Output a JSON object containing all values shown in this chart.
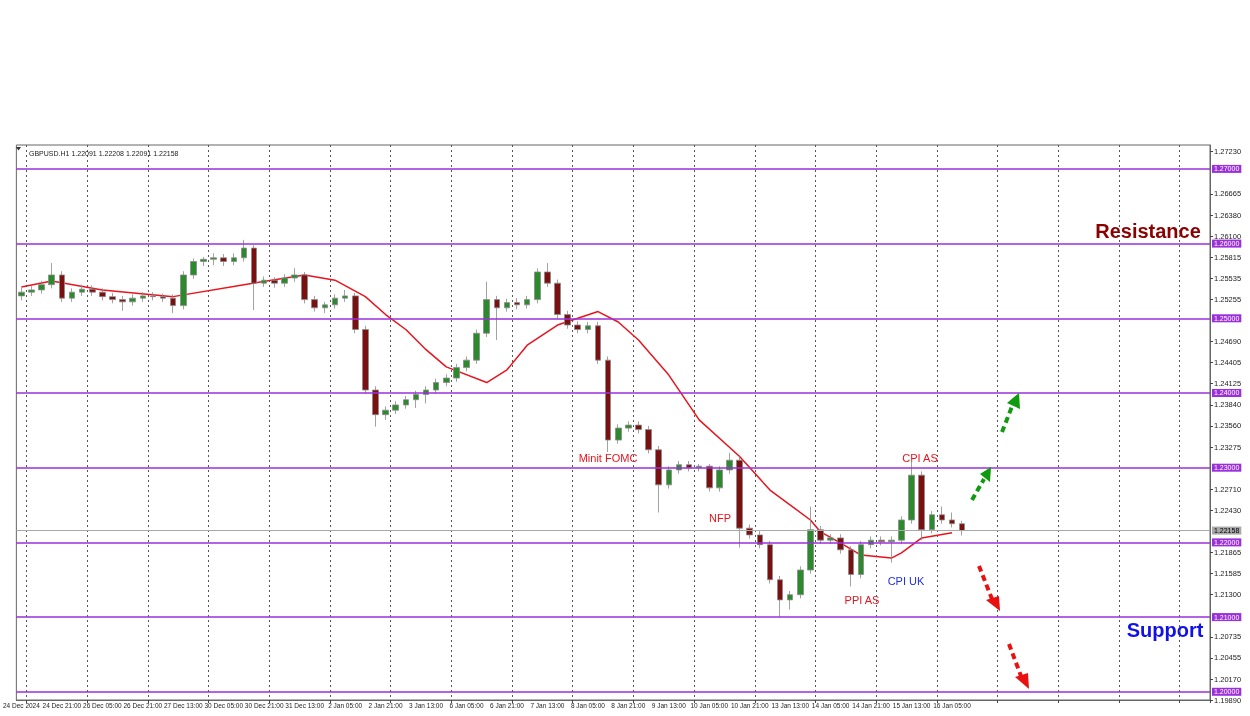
{
  "chart_data": {
    "type": "candlestick",
    "title": "GBPUSD.H1 1.22091 1.22208 1.22091 1.22158",
    "categories": [
      "24 Dec 2024",
      null,
      null,
      null,
      "24 Dec 21:00",
      null,
      null,
      null,
      "26 Dec 05:00",
      null,
      null,
      null,
      "26 Dec 21:00",
      null,
      null,
      null,
      "27 Dec 13:00",
      null,
      null,
      null,
      "30 Dec 05:00",
      null,
      null,
      null,
      "30 Dec 21:00",
      null,
      null,
      null,
      "31 Dec 13:00",
      null,
      null,
      null,
      "2 Jan 05:00",
      null,
      null,
      null,
      "2 Jan 21:00",
      null,
      null,
      null,
      "3 Jan 13:00",
      null,
      null,
      null,
      "6 Jan 05:00",
      null,
      null,
      null,
      "6 Jan 21:00",
      null,
      null,
      null,
      "7 Jan 13:00",
      null,
      null,
      null,
      "8 Jan 05:00",
      null,
      null,
      null,
      "8 Jan 21:00",
      null,
      null,
      null,
      "9 Jan 13:00",
      null,
      null,
      null,
      "10 Jan 05:00",
      null,
      null,
      null,
      "10 Jan 21:00",
      null,
      null,
      null,
      "13 Jan 13:00",
      null,
      null,
      null,
      "14 Jan 05:00",
      null,
      null,
      null,
      "14 Jan 21:00",
      null,
      null,
      null,
      "15 Jan 13:00",
      null,
      null,
      null,
      "16 Jan 05:00",
      null,
      null,
      null,
      null,
      null,
      null,
      null,
      null,
      null,
      null,
      null,
      null,
      null,
      null,
      null,
      null,
      null,
      null,
      null,
      null,
      null,
      null,
      null,
      null,
      null
    ],
    "ohlc": [
      [
        1.253,
        1.2541,
        1.2524,
        1.2535
      ],
      [
        1.2535,
        1.2543,
        1.253,
        1.2538
      ],
      [
        1.2538,
        1.255,
        1.2533,
        1.2545
      ],
      [
        1.2545,
        1.2574,
        1.254,
        1.2558
      ],
      [
        1.2558,
        1.2563,
        1.2522,
        1.2527
      ],
      [
        1.2527,
        1.254,
        1.2522,
        1.2535
      ],
      [
        1.2535,
        1.2545,
        1.253,
        1.2539
      ],
      [
        1.2539,
        1.2544,
        1.253,
        1.2535
      ],
      [
        1.2535,
        1.254,
        1.2524,
        1.2529
      ],
      [
        1.2529,
        1.2534,
        1.252,
        1.2525
      ],
      [
        1.2525,
        1.253,
        1.251,
        1.2522
      ],
      [
        1.2522,
        1.2532,
        1.2517,
        1.2527
      ],
      [
        1.2527,
        1.2535,
        1.2522,
        1.253
      ],
      [
        1.253,
        1.2535,
        1.2524,
        1.2529
      ],
      [
        1.2529,
        1.2533,
        1.2522,
        1.2527
      ],
      [
        1.2527,
        1.2532,
        1.2507,
        1.2517
      ],
      [
        1.2517,
        1.2563,
        1.2512,
        1.2558
      ],
      [
        1.2558,
        1.258,
        1.2553,
        1.2576
      ],
      [
        1.2576,
        1.2582,
        1.257,
        1.2579
      ],
      [
        1.2579,
        1.2587,
        1.2571,
        1.2581
      ],
      [
        1.2581,
        1.2586,
        1.257,
        1.2576
      ],
      [
        1.2576,
        1.2587,
        1.2571,
        1.2581
      ],
      [
        1.2581,
        1.2605,
        1.2576,
        1.2594
      ],
      [
        1.2594,
        1.2598,
        1.2511,
        1.2547
      ],
      [
        1.2547,
        1.2556,
        1.2542,
        1.2551
      ],
      [
        1.2551,
        1.2555,
        1.2541,
        1.2547
      ],
      [
        1.2547,
        1.2559,
        1.2542,
        1.2554
      ],
      [
        1.2554,
        1.2567,
        1.2549,
        1.2558
      ],
      [
        1.2558,
        1.2562,
        1.252,
        1.2525
      ],
      [
        1.2525,
        1.253,
        1.2509,
        1.2514
      ],
      [
        1.2514,
        1.2522,
        1.2507,
        1.2518
      ],
      [
        1.2518,
        1.2532,
        1.2513,
        1.2527
      ],
      [
        1.2527,
        1.2538,
        1.2522,
        1.253
      ],
      [
        1.253,
        1.2534,
        1.248,
        1.2485
      ],
      [
        1.2485,
        1.249,
        1.2399,
        1.2404
      ],
      [
        1.2404,
        1.2409,
        1.2355,
        1.2371
      ],
      [
        1.2371,
        1.2382,
        1.2364,
        1.2377
      ],
      [
        1.2377,
        1.2389,
        1.2372,
        1.2384
      ],
      [
        1.2384,
        1.2396,
        1.2379,
        1.2391
      ],
      [
        1.2391,
        1.2403,
        1.238,
        1.2398
      ],
      [
        1.2398,
        1.2409,
        1.2386,
        1.2404
      ],
      [
        1.2404,
        1.2419,
        1.2399,
        1.2414
      ],
      [
        1.2414,
        1.2425,
        1.2409,
        1.242
      ],
      [
        1.242,
        1.2439,
        1.2415,
        1.2434
      ],
      [
        1.2434,
        1.2449,
        1.2429,
        1.2444
      ],
      [
        1.2444,
        1.2485,
        1.2439,
        1.248
      ],
      [
        1.248,
        1.2549,
        1.2475,
        1.2525
      ],
      [
        1.2525,
        1.253,
        1.2471,
        1.2514
      ],
      [
        1.2514,
        1.2526,
        1.2509,
        1.2521
      ],
      [
        1.2521,
        1.2527,
        1.2512,
        1.2518
      ],
      [
        1.2518,
        1.253,
        1.2513,
        1.2525
      ],
      [
        1.2525,
        1.2567,
        1.252,
        1.2562
      ],
      [
        1.2562,
        1.2574,
        1.2542,
        1.2547
      ],
      [
        1.2547,
        1.2552,
        1.25,
        1.2505
      ],
      [
        1.2505,
        1.251,
        1.2486,
        1.2491
      ],
      [
        1.2491,
        1.2496,
        1.248,
        1.2485
      ],
      [
        1.2485,
        1.2495,
        1.248,
        1.249
      ],
      [
        1.249,
        1.2495,
        1.2439,
        1.2444
      ],
      [
        1.2444,
        1.2449,
        1.2321,
        1.2337
      ],
      [
        1.2337,
        1.2358,
        1.2332,
        1.2353
      ],
      [
        1.2353,
        1.2362,
        1.2348,
        1.2357
      ],
      [
        1.2357,
        1.2362,
        1.2346,
        1.2351
      ],
      [
        1.2351,
        1.2356,
        1.2319,
        1.2324
      ],
      [
        1.2324,
        1.2329,
        1.224,
        1.2277
      ],
      [
        1.2277,
        1.2302,
        1.2272,
        1.2297
      ],
      [
        1.2297,
        1.2309,
        1.2292,
        1.2304
      ],
      [
        1.2304,
        1.2309,
        1.2295,
        1.23
      ],
      [
        1.23,
        1.2305,
        1.2295,
        1.2302
      ],
      [
        1.2302,
        1.2305,
        1.2268,
        1.2273
      ],
      [
        1.2273,
        1.2302,
        1.2268,
        1.2297
      ],
      [
        1.2297,
        1.232,
        1.2292,
        1.231
      ],
      [
        1.231,
        1.2315,
        1.2193,
        1.2219
      ],
      [
        1.2219,
        1.2224,
        1.2205,
        1.221
      ],
      [
        1.221,
        1.2215,
        1.2192,
        1.2197
      ],
      [
        1.2197,
        1.2202,
        1.2145,
        1.215
      ],
      [
        1.215,
        1.2155,
        1.21,
        1.2123
      ],
      [
        1.2123,
        1.2135,
        1.211,
        1.213
      ],
      [
        1.213,
        1.2168,
        1.2125,
        1.2163
      ],
      [
        1.2163,
        1.2248,
        1.2158,
        1.2217
      ],
      [
        1.2217,
        1.2222,
        1.2198,
        1.2203
      ],
      [
        1.2203,
        1.2211,
        1.2198,
        1.2206
      ],
      [
        1.2206,
        1.2211,
        1.2185,
        1.219
      ],
      [
        1.219,
        1.2195,
        1.2141,
        1.2157
      ],
      [
        1.2157,
        1.2202,
        1.2152,
        1.2197
      ],
      [
        1.2197,
        1.2208,
        1.2192,
        1.2203
      ],
      [
        1.2203,
        1.2208,
        1.2196,
        1.2201
      ],
      [
        1.2201,
        1.2208,
        1.2173,
        1.2203
      ],
      [
        1.2203,
        1.2235,
        1.2198,
        1.223
      ],
      [
        1.223,
        1.2311,
        1.2225,
        1.229
      ],
      [
        1.229,
        1.2295,
        1.2203,
        1.2217
      ],
      [
        1.2217,
        1.2242,
        1.2212,
        1.2237
      ],
      [
        1.2237,
        1.2248,
        1.2225,
        1.223
      ],
      [
        1.223,
        1.224,
        1.222,
        1.2225
      ],
      [
        1.2225,
        1.2229,
        1.22091,
        1.22158
      ],
      null,
      null,
      null,
      null,
      null,
      null,
      null,
      null,
      null,
      null,
      null,
      null,
      null,
      null,
      null,
      null,
      null,
      null,
      null,
      null,
      null,
      null,
      null,
      null
    ],
    "series": [
      {
        "type": "line",
        "color": "#e8141e",
        "values": [
          1.2542,
          null,
          null,
          1.255,
          null,
          null,
          null,
          null,
          1.2538,
          null,
          null,
          null,
          null,
          null,
          null,
          1.2529,
          null,
          null,
          null,
          null,
          null,
          null,
          1.2545,
          null,
          null,
          null,
          null,
          null,
          1.2558,
          null,
          null,
          1.2551,
          null,
          null,
          1.2529,
          null,
          1.2505,
          null,
          1.2485,
          null,
          1.2458,
          null,
          1.2435,
          null,
          null,
          null,
          1.2414,
          null,
          1.2431,
          null,
          1.2464,
          null,
          null,
          1.2491,
          null,
          null,
          null,
          1.2509,
          null,
          1.2495,
          null,
          1.2471,
          null,
          null,
          1.2424,
          null,
          null,
          1.2364,
          null,
          null,
          null,
          1.2315,
          null,
          null,
          1.227,
          null,
          null,
          null,
          1.223,
          1.2214,
          null,
          1.2199,
          null,
          1.2183,
          null,
          null,
          1.2179,
          1.2186,
          null,
          1.2206,
          null,
          null,
          1.2213,
          null,
          null,
          null,
          null,
          null,
          null,
          null,
          null,
          null,
          null,
          null,
          null,
          null,
          null,
          null,
          null,
          null,
          null,
          null,
          null,
          null,
          null,
          null,
          null,
          null
        ]
      }
    ],
    "ylim": [
      1.1989,
      1.2732
    ],
    "yticks": [
      {
        "value": 1.2723,
        "label": "1.27230"
      },
      {
        "value": 1.26665,
        "label": "1.26665"
      },
      {
        "value": 1.2638,
        "label": "1.26380"
      },
      {
        "value": 1.261,
        "label": "1.26100"
      },
      {
        "value": 1.25815,
        "label": "1.25815"
      },
      {
        "value": 1.25535,
        "label": "1.25535"
      },
      {
        "value": 1.25255,
        "label": "1.25255"
      },
      {
        "value": 1.2469,
        "label": "1.24690"
      },
      {
        "value": 1.24405,
        "label": "1.24405"
      },
      {
        "value": 1.24125,
        "label": "1.24125"
      },
      {
        "value": 1.2384,
        "label": "1.23840"
      },
      {
        "value": 1.2356,
        "label": "1.23560"
      },
      {
        "value": 1.23275,
        "label": "1.23275"
      },
      {
        "value": 1.2271,
        "label": "1.22710"
      },
      {
        "value": 1.2243,
        "label": "1.22430"
      },
      {
        "value": 1.21865,
        "label": "1.21865"
      },
      {
        "value": 1.21585,
        "label": "1.21585"
      },
      {
        "value": 1.213,
        "label": "1.21300"
      },
      {
        "value": 1.20735,
        "label": "1.20735"
      },
      {
        "value": 1.20455,
        "label": "1.20455"
      },
      {
        "value": 1.2017,
        "label": "1.20170"
      },
      {
        "value": 1.1989,
        "label": "1.19890"
      }
    ],
    "grid": "x",
    "ref_lines": [
      {
        "axis": "y",
        "value": 1.27,
        "label": "1.27000",
        "color": "#9b30d9"
      },
      {
        "axis": "y",
        "value": 1.26,
        "label": "1.26000",
        "color": "#9b30d9"
      },
      {
        "axis": "y",
        "value": 1.25,
        "label": "1.25000",
        "color": "#9b30d9"
      },
      {
        "axis": "y",
        "value": 1.24,
        "label": "1.24000",
        "color": "#9b30d9"
      },
      {
        "axis": "y",
        "value": 1.23,
        "label": "1.23000",
        "color": "#9b30d9"
      },
      {
        "axis": "y",
        "value": 1.22,
        "label": "1.22000",
        "color": "#9b30d9"
      },
      {
        "axis": "y",
        "value": 1.21,
        "label": "1.21000",
        "color": "#9b30d9"
      },
      {
        "axis": "y",
        "value": 1.2,
        "label": "1.20000",
        "color": "#9b30d9"
      },
      {
        "axis": "y",
        "value": 1.22158,
        "label": "1.22158",
        "color": "#a8a8a8"
      }
    ],
    "annotations": [
      "Minit FOMC",
      "NFP",
      "CPI AS",
      "PPI AS",
      "CPI UK",
      "Resistance",
      "Support"
    ]
  }
}
